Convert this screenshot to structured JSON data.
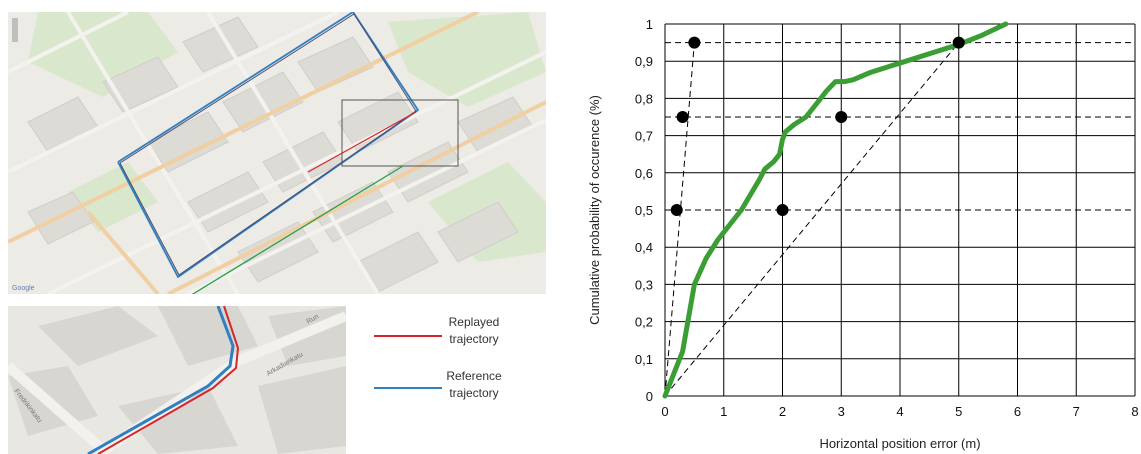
{
  "legend": {
    "replayed_line1": "Replayed",
    "replayed_line2": "trajectory",
    "reference_line1": "Reference",
    "reference_line2": "trajectory",
    "replayed_color": "#d7262b",
    "reference_color": "#2f7fc3"
  },
  "map": {
    "zoom_arrow_color": "#2ca04a",
    "street_labels": [
      "Fredrikinkatu",
      "Arkadiankatu",
      "Run"
    ]
  },
  "chart_data": {
    "type": "line",
    "xlabel": "Horizontal position error (m)",
    "ylabel": "Cumulative probability of occurence (%)",
    "xlim": [
      0,
      8
    ],
    "ylim": [
      0,
      1
    ],
    "x_ticks": [
      "0",
      "1",
      "2",
      "3",
      "4",
      "5",
      "6",
      "7",
      "8"
    ],
    "y_ticks": [
      "0",
      "0,1",
      "0,2",
      "0,3",
      "0,4",
      "0,5",
      "0,6",
      "0,7",
      "0,8",
      "0,9",
      "1"
    ],
    "grid": true,
    "series": [
      {
        "color": "#3a9e35",
        "x": [
          0,
          0.3,
          0.5,
          0.7,
          0.9,
          1.1,
          1.3,
          1.45,
          1.6,
          1.7,
          1.85,
          1.95,
          2.0,
          2.05,
          2.2,
          2.4,
          2.6,
          2.75,
          2.9,
          3.05,
          3.2,
          3.5,
          4.0,
          4.6,
          5.0,
          5.4,
          5.8
        ],
        "y": [
          0,
          0.12,
          0.3,
          0.37,
          0.42,
          0.46,
          0.5,
          0.54,
          0.58,
          0.61,
          0.63,
          0.65,
          0.69,
          0.71,
          0.73,
          0.75,
          0.79,
          0.82,
          0.845,
          0.845,
          0.85,
          0.87,
          0.895,
          0.925,
          0.945,
          0.97,
          1.0
        ]
      }
    ],
    "markers": {
      "x": [
        0.2,
        0.3,
        0.5,
        2.0,
        3.0,
        5.0
      ],
      "y": [
        0.5,
        0.75,
        0.95,
        0.5,
        0.75,
        0.95
      ]
    },
    "percentile_levels": [
      0.5,
      0.75,
      0.95
    ],
    "dashed_guides": [
      {
        "x": [
          0,
          0.5
        ],
        "y": [
          0,
          0.95
        ]
      },
      {
        "x": [
          0,
          5.0
        ],
        "y": [
          0,
          0.95
        ]
      }
    ]
  }
}
